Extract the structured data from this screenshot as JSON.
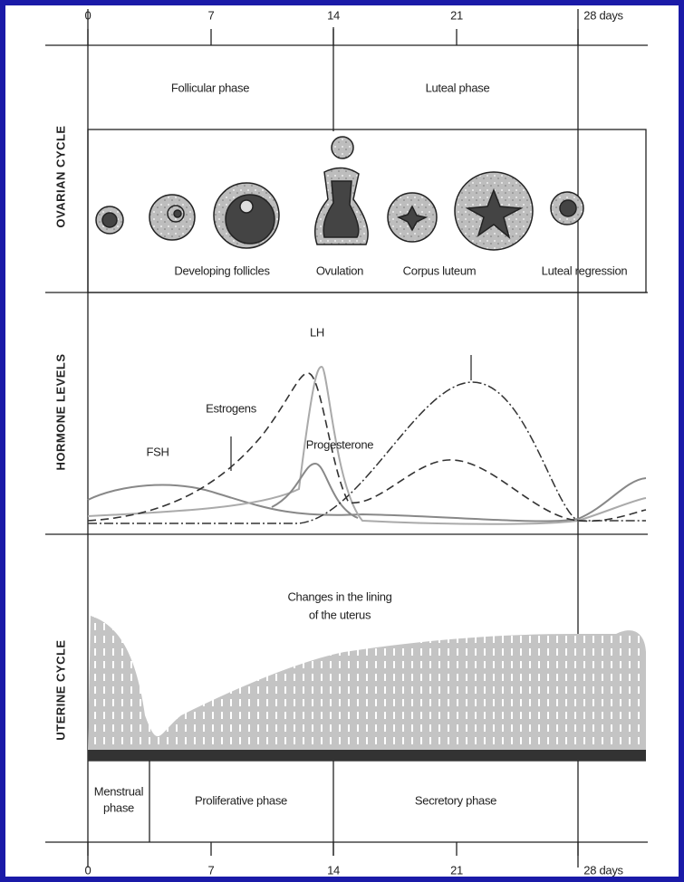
{
  "axis_top": {
    "ticks": [
      "0",
      "7",
      "14",
      "21",
      "28 days"
    ]
  },
  "axis_bottom": {
    "ticks": [
      "0",
      "7",
      "14",
      "21",
      "28 days"
    ]
  },
  "row_labels": [
    "OVARIAN CYCLE",
    "HORMONE LEVELS",
    "UTERINE CYCLE"
  ],
  "ovarian": {
    "phases": [
      "Follicular phase",
      "Luteal phase"
    ],
    "stages": [
      "Developing follicles",
      "Ovulation",
      "Corpus luteum",
      "Luteal regression"
    ]
  },
  "hormones": {
    "labels": [
      "LH",
      "Estrogens",
      "FSH",
      "Progesterone"
    ]
  },
  "uterine": {
    "caption": [
      "Changes in the lining",
      "of the uterus"
    ],
    "menstrual": [
      "Menstrual",
      "phase"
    ],
    "phases": [
      "Proliferative phase",
      "Secretory phase"
    ]
  }
}
